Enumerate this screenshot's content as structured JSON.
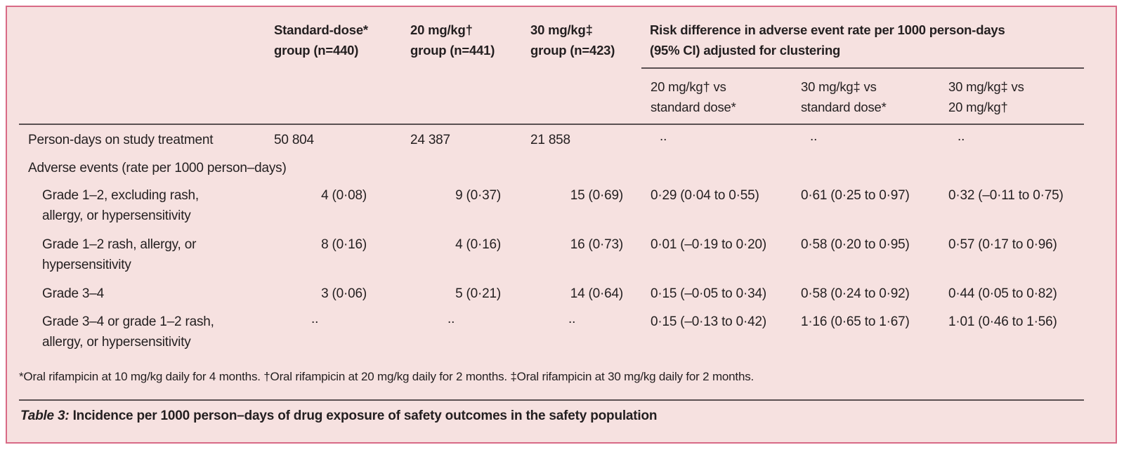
{
  "colors": {
    "background": "#f6e1e0",
    "border": "#d86a86",
    "rule": "#5a5052",
    "text": "#231f20"
  },
  "header": {
    "groups": [
      {
        "line1": "Standard-dose*",
        "line2": "group (n=440)"
      },
      {
        "line1": "20 mg/kg†",
        "line2": "group (n=441)"
      },
      {
        "line1": "30 mg/kg‡",
        "line2": "group (n=423)"
      }
    ],
    "risk_diff": {
      "line1": "Risk difference in adverse event rate per 1000 person-days",
      "line2": "(95% CI) adjusted for clustering"
    },
    "comparisons": [
      {
        "line1": "20 mg/kg† vs",
        "line2": "standard dose*"
      },
      {
        "line1": "30 mg/kg‡ vs",
        "line2": "standard dose*"
      },
      {
        "line1": "30 mg/kg‡ vs",
        "line2": "20 mg/kg†"
      }
    ]
  },
  "rows": [
    {
      "label": [
        "Person-days on study treatment"
      ],
      "values": [
        "50 804",
        "24 387",
        "21 858"
      ],
      "diffs": [
        "..",
        "..",
        ".."
      ]
    },
    {
      "label": [
        "Adverse events (rate per 1000 person–days)"
      ],
      "values": [],
      "diffs": []
    },
    {
      "label": [
        "Grade 1–2, excluding rash,",
        "allergy, or hypersensitivity"
      ],
      "values": [
        "4 (0·08)",
        "9 (0·37)",
        "15 (0·69)"
      ],
      "diffs": [
        "0·29 (0·04 to 0·55)",
        "0·61 (0·25 to 0·97)",
        "0·32 (–0·11 to 0·75)"
      ]
    },
    {
      "label": [
        "Grade 1–2 rash, allergy, or",
        "hypersensitivity"
      ],
      "values": [
        "8 (0·16)",
        "4 (0·16)",
        "16 (0·73)"
      ],
      "diffs": [
        "0·01 (–0·19 to 0·20)",
        "0·58 (0·20 to 0·95)",
        "0·57 (0·17 to 0·96)"
      ]
    },
    {
      "label": [
        "Grade 3–4"
      ],
      "values": [
        "3 (0·06)",
        "5 (0·21)",
        "14 (0·64)"
      ],
      "diffs": [
        "0·15 (–0·05 to 0·34)",
        "0·58 (0·24 to 0·92)",
        "0·44 (0·05 to 0·82)"
      ]
    },
    {
      "label": [
        "Grade 3–4 or grade 1–2 rash,",
        "allergy, or hypersensitivity"
      ],
      "values": [
        "..",
        "..",
        ".."
      ],
      "diffs": [
        "0·15 (–0·13 to 0·42)",
        "1·16 (0·65 to 1·67)",
        "1·01 (0·46 to 1·56)"
      ]
    }
  ],
  "footnote": "*Oral rifampicin at 10 mg/kg daily for 4 months. †Oral rifampicin at 20 mg/kg daily for 2 months. ‡Oral rifampicin at 30 mg/kg daily for 2 months.",
  "caption": {
    "label": "Table 3:",
    "text": " Incidence per 1000 person–days of drug exposure of safety outcomes in the safety population"
  }
}
